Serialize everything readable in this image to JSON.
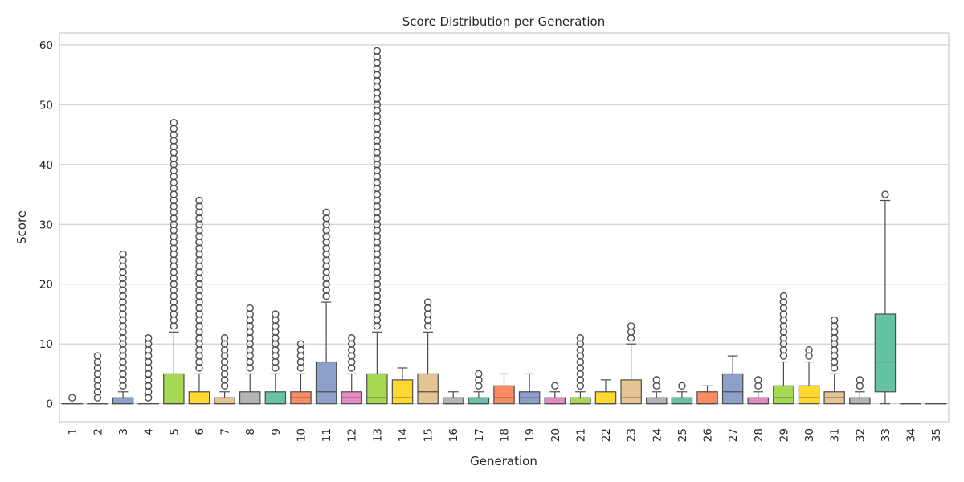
{
  "chart_data": {
    "type": "box",
    "title": "Score Distribution per Generation",
    "xlabel": "Generation",
    "ylabel": "Score",
    "ylim": [
      -3,
      62
    ],
    "yticks": [
      0,
      10,
      20,
      30,
      40,
      50,
      60
    ],
    "grid": true,
    "legend": "none",
    "palette": [
      "#66c2a5",
      "#fc8d62",
      "#8da0cb",
      "#e78ac3",
      "#a6d854",
      "#ffd92f",
      "#e5c494",
      "#b3b3b3"
    ],
    "categories": [
      "1",
      "2",
      "3",
      "4",
      "5",
      "6",
      "7",
      "8",
      "9",
      "10",
      "11",
      "12",
      "13",
      "14",
      "15",
      "16",
      "17",
      "18",
      "19",
      "20",
      "21",
      "22",
      "23",
      "24",
      "25",
      "26",
      "27",
      "28",
      "29",
      "30",
      "31",
      "32",
      "33",
      "34",
      "35"
    ],
    "boxes": [
      {
        "q1": 0,
        "median": 0,
        "q3": 0,
        "whisker_low": 0,
        "whisker_high": 0,
        "outliers_min": 1,
        "outliers_max": 1
      },
      {
        "q1": 0,
        "median": 0,
        "q3": 0,
        "whisker_low": 0,
        "whisker_high": 0,
        "outliers_min": 1,
        "outliers_max": 8
      },
      {
        "q1": 0,
        "median": 0,
        "q3": 1,
        "whisker_low": 0,
        "whisker_high": 2,
        "outliers_min": 3,
        "outliers_max": 25
      },
      {
        "q1": 0,
        "median": 0,
        "q3": 0,
        "whisker_low": 0,
        "whisker_high": 0,
        "outliers_min": 1,
        "outliers_max": 11
      },
      {
        "q1": 0,
        "median": 0,
        "q3": 5,
        "whisker_low": 0,
        "whisker_high": 12,
        "outliers_min": 13,
        "outliers_max": 47
      },
      {
        "q1": 0,
        "median": 0,
        "q3": 2,
        "whisker_low": 0,
        "whisker_high": 5,
        "outliers_min": 6,
        "outliers_max": 34
      },
      {
        "q1": 0,
        "median": 0,
        "q3": 1,
        "whisker_low": 0,
        "whisker_high": 2,
        "outliers_min": 3,
        "outliers_max": 11
      },
      {
        "q1": 0,
        "median": 0,
        "q3": 2,
        "whisker_low": 0,
        "whisker_high": 5,
        "outliers_min": 6,
        "outliers_max": 16
      },
      {
        "q1": 0,
        "median": 0,
        "q3": 2,
        "whisker_low": 0,
        "whisker_high": 5,
        "outliers_min": 6,
        "outliers_max": 15
      },
      {
        "q1": 0,
        "median": 1,
        "q3": 2,
        "whisker_low": 0,
        "whisker_high": 5,
        "outliers_min": 6,
        "outliers_max": 10
      },
      {
        "q1": 0,
        "median": 2,
        "q3": 7,
        "whisker_low": 0,
        "whisker_high": 17,
        "outliers_min": 18,
        "outliers_max": 32
      },
      {
        "q1": 0,
        "median": 1,
        "q3": 2,
        "whisker_low": 0,
        "whisker_high": 5,
        "outliers_min": 6,
        "outliers_max": 11
      },
      {
        "q1": 0,
        "median": 1,
        "q3": 5,
        "whisker_low": 0,
        "whisker_high": 12,
        "outliers_min": 13,
        "outliers_max": 59
      },
      {
        "q1": 0,
        "median": 1,
        "q3": 4,
        "whisker_low": 0,
        "whisker_high": 6,
        "outliers_min": null,
        "outliers_max": null
      },
      {
        "q1": 0,
        "median": 2,
        "q3": 5,
        "whisker_low": 0,
        "whisker_high": 12,
        "outliers_min": 13,
        "outliers_max": 17
      },
      {
        "q1": 0,
        "median": 0,
        "q3": 1,
        "whisker_low": 0,
        "whisker_high": 2,
        "outliers_min": null,
        "outliers_max": null
      },
      {
        "q1": 0,
        "median": 0,
        "q3": 1,
        "whisker_low": 0,
        "whisker_high": 2,
        "outliers_min": 3,
        "outliers_max": 5
      },
      {
        "q1": 0,
        "median": 1,
        "q3": 3,
        "whisker_low": 0,
        "whisker_high": 5,
        "outliers_min": null,
        "outliers_max": null
      },
      {
        "q1": 0,
        "median": 1,
        "q3": 2,
        "whisker_low": 0,
        "whisker_high": 5,
        "outliers_min": null,
        "outliers_max": null
      },
      {
        "q1": 0,
        "median": 0,
        "q3": 1,
        "whisker_low": 0,
        "whisker_high": 2,
        "outliers_min": 3,
        "outliers_max": 3
      },
      {
        "q1": 0,
        "median": 0,
        "q3": 1,
        "whisker_low": 0,
        "whisker_high": 2,
        "outliers_min": 3,
        "outliers_max": 11
      },
      {
        "q1": 0,
        "median": 0,
        "q3": 2,
        "whisker_low": 0,
        "whisker_high": 4,
        "outliers_min": null,
        "outliers_max": null
      },
      {
        "q1": 0,
        "median": 1,
        "q3": 4,
        "whisker_low": 0,
        "whisker_high": 10,
        "outliers_min": 11,
        "outliers_max": 13
      },
      {
        "q1": 0,
        "median": 0,
        "q3": 1,
        "whisker_low": 0,
        "whisker_high": 2,
        "outliers_min": 3,
        "outliers_max": 4
      },
      {
        "q1": 0,
        "median": 0,
        "q3": 1,
        "whisker_low": 0,
        "whisker_high": 2,
        "outliers_min": 3,
        "outliers_max": 3
      },
      {
        "q1": 0,
        "median": 0,
        "q3": 2,
        "whisker_low": 0,
        "whisker_high": 3,
        "outliers_min": null,
        "outliers_max": null
      },
      {
        "q1": 0,
        "median": 2,
        "q3": 5,
        "whisker_low": 0,
        "whisker_high": 8,
        "outliers_min": null,
        "outliers_max": null
      },
      {
        "q1": 0,
        "median": 0,
        "q3": 1,
        "whisker_low": 0,
        "whisker_high": 2,
        "outliers_min": 3,
        "outliers_max": 4
      },
      {
        "q1": 0,
        "median": 1,
        "q3": 3,
        "whisker_low": 0,
        "whisker_high": 7,
        "outliers_min": 8,
        "outliers_max": 18
      },
      {
        "q1": 0,
        "median": 1,
        "q3": 3,
        "whisker_low": 0,
        "whisker_high": 7,
        "outliers_min": 8,
        "outliers_max": 9
      },
      {
        "q1": 0,
        "median": 1,
        "q3": 2,
        "whisker_low": 0,
        "whisker_high": 5,
        "outliers_min": 6,
        "outliers_max": 14
      },
      {
        "q1": 0,
        "median": 0,
        "q3": 1,
        "whisker_low": 0,
        "whisker_high": 2,
        "outliers_min": 3,
        "outliers_max": 4
      },
      {
        "q1": 2,
        "median": 7,
        "q3": 15,
        "whisker_low": 0,
        "whisker_high": 34,
        "outliers_min": 35,
        "outliers_max": 35
      },
      {
        "q1": 0,
        "median": 0,
        "q3": 0,
        "whisker_low": 0,
        "whisker_high": 0,
        "outliers_min": null,
        "outliers_max": null
      },
      {
        "q1": 0,
        "median": 0,
        "q3": 0,
        "whisker_low": 0,
        "whisker_high": 0,
        "outliers_min": null,
        "outliers_max": null
      }
    ]
  }
}
